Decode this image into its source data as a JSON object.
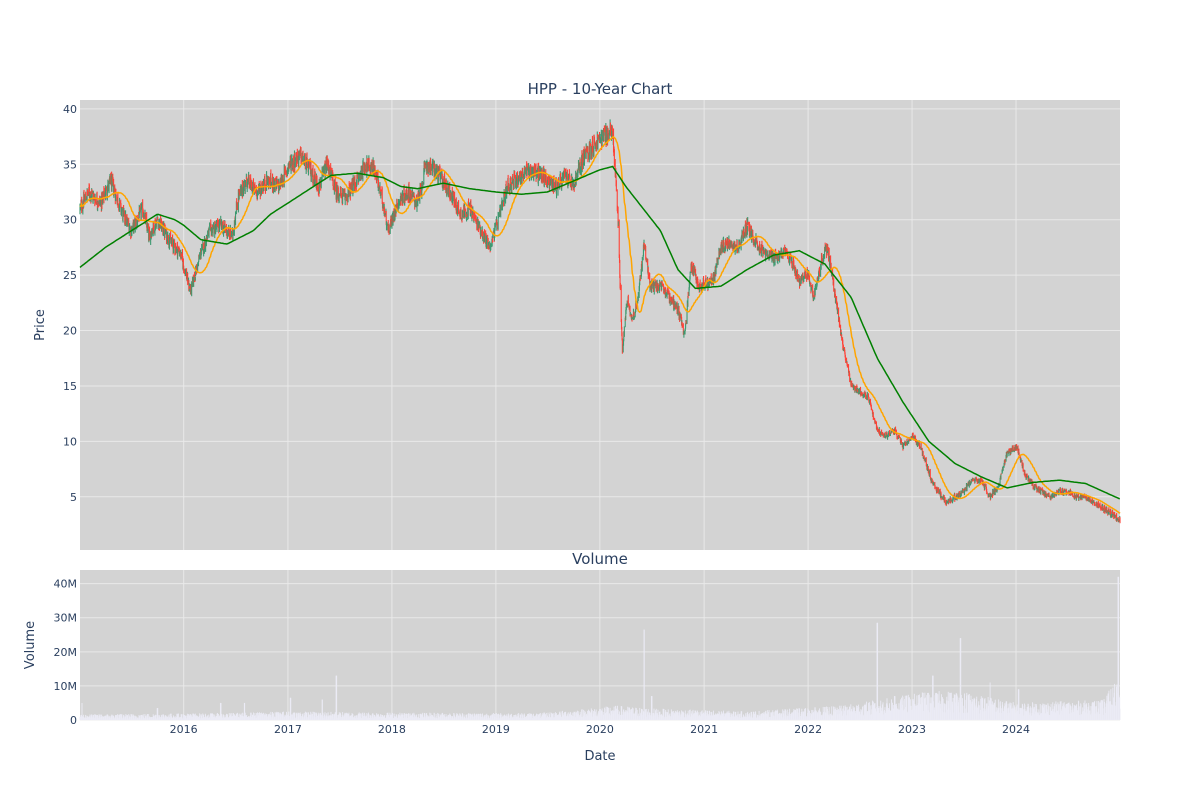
{
  "chart_data": [
    {
      "type": "candlestick",
      "title": "HPP - 10-Year Chart",
      "ylabel": "Price",
      "xlabel": "",
      "ylim": [
        0.2,
        40.8
      ],
      "xlim": [
        "2015-01-02",
        "2024-12-31"
      ],
      "grid": true,
      "yticks": [
        5,
        10,
        15,
        20,
        25,
        30,
        35,
        40
      ],
      "xtick_years": [
        2016,
        2017,
        2018,
        2019,
        2020,
        2021,
        2022,
        2023,
        2024
      ],
      "colors": {
        "up": "#3d9970",
        "down": "#ff4136",
        "ma_short": "#ffa500",
        "ma_long": "#008000",
        "plot_bg": "#d3d3d3"
      },
      "close_anchors": [
        [
          "2015-01-02",
          31.0
        ],
        [
          "2015-02-01",
          32.5
        ],
        [
          "2015-03-15",
          31.5
        ],
        [
          "2015-04-20",
          33.5
        ],
        [
          "2015-06-01",
          30.5
        ],
        [
          "2015-07-01",
          29.0
        ],
        [
          "2015-08-10",
          31.0
        ],
        [
          "2015-09-01",
          28.5
        ],
        [
          "2015-10-01",
          30.0
        ],
        [
          "2015-11-15",
          28.0
        ],
        [
          "2015-12-20",
          27.0
        ],
        [
          "2016-01-25",
          23.5
        ],
        [
          "2016-03-01",
          27.0
        ],
        [
          "2016-04-01",
          29.0
        ],
        [
          "2016-05-10",
          29.5
        ],
        [
          "2016-06-20",
          28.5
        ],
        [
          "2016-07-10",
          32.0
        ],
        [
          "2016-08-10",
          33.5
        ],
        [
          "2016-09-15",
          32.5
        ],
        [
          "2016-10-20",
          33.5
        ],
        [
          "2016-12-01",
          33.0
        ],
        [
          "2017-01-05",
          35.0
        ],
        [
          "2017-02-15",
          35.8
        ],
        [
          "2017-03-20",
          34.5
        ],
        [
          "2017-04-20",
          33.0
        ],
        [
          "2017-05-20",
          35.0
        ],
        [
          "2017-06-20",
          32.5
        ],
        [
          "2017-07-20",
          32.0
        ],
        [
          "2017-09-01",
          33.5
        ],
        [
          "2017-10-01",
          35.0
        ],
        [
          "2017-11-01",
          34.5
        ],
        [
          "2017-12-01",
          31.5
        ],
        [
          "2017-12-20",
          29.0
        ],
        [
          "2018-01-20",
          31.5
        ],
        [
          "2018-03-01",
          32.5
        ],
        [
          "2018-04-01",
          31.5
        ],
        [
          "2018-05-01",
          35.0
        ],
        [
          "2018-06-01",
          34.5
        ],
        [
          "2018-07-01",
          33.5
        ],
        [
          "2018-08-01",
          32.0
        ],
        [
          "2018-09-01",
          30.5
        ],
        [
          "2018-10-01",
          31.0
        ],
        [
          "2018-11-10",
          29.0
        ],
        [
          "2018-12-10",
          27.5
        ],
        [
          "2019-01-10",
          30.0
        ],
        [
          "2019-02-10",
          33.0
        ],
        [
          "2019-04-01",
          34.0
        ],
        [
          "2019-05-01",
          34.5
        ],
        [
          "2019-06-10",
          34.0
        ],
        [
          "2019-08-01",
          33.0
        ],
        [
          "2019-09-01",
          34.0
        ],
        [
          "2019-10-01",
          33.0
        ],
        [
          "2019-11-01",
          35.5
        ],
        [
          "2019-12-01",
          36.5
        ],
        [
          "2020-01-10",
          37.5
        ],
        [
          "2020-02-15",
          38.0
        ],
        [
          "2020-03-05",
          30.0
        ],
        [
          "2020-03-20",
          18.0
        ],
        [
          "2020-04-05",
          23.0
        ],
        [
          "2020-04-25",
          21.0
        ],
        [
          "2020-05-15",
          23.0
        ],
        [
          "2020-06-05",
          28.0
        ],
        [
          "2020-06-25",
          24.0
        ],
        [
          "2020-08-01",
          24.0
        ],
        [
          "2020-09-01",
          23.0
        ],
        [
          "2020-10-01",
          22.0
        ],
        [
          "2020-10-25",
          19.5
        ],
        [
          "2020-11-15",
          26.0
        ],
        [
          "2020-12-15",
          24.0
        ],
        [
          "2021-02-01",
          24.5
        ],
        [
          "2021-03-01",
          27.5
        ],
        [
          "2021-04-01",
          28.0
        ],
        [
          "2021-05-01",
          27.5
        ],
        [
          "2021-06-01",
          29.5
        ],
        [
          "2021-07-01",
          28.0
        ],
        [
          "2021-08-01",
          27.0
        ],
        [
          "2021-09-01",
          26.5
        ],
        [
          "2021-10-01",
          27.0
        ],
        [
          "2021-11-01",
          26.5
        ],
        [
          "2021-12-01",
          24.5
        ],
        [
          "2022-01-01",
          25.0
        ],
        [
          "2022-01-20",
          23.0
        ],
        [
          "2022-02-20",
          26.5
        ],
        [
          "2022-03-10",
          27.5
        ],
        [
          "2022-04-01",
          24.0
        ],
        [
          "2022-05-01",
          19.0
        ],
        [
          "2022-06-01",
          15.0
        ],
        [
          "2022-07-01",
          14.5
        ],
        [
          "2022-08-01",
          14.0
        ],
        [
          "2022-09-01",
          11.0
        ],
        [
          "2022-10-01",
          10.5
        ],
        [
          "2022-11-01",
          11.0
        ],
        [
          "2022-12-01",
          9.5
        ],
        [
          "2023-01-01",
          10.5
        ],
        [
          "2023-02-01",
          9.5
        ],
        [
          "2023-03-10",
          6.5
        ],
        [
          "2023-04-01",
          5.5
        ],
        [
          "2023-05-01",
          4.5
        ],
        [
          "2023-06-01",
          5.0
        ],
        [
          "2023-07-01",
          5.5
        ],
        [
          "2023-08-01",
          6.5
        ],
        [
          "2023-09-01",
          6.5
        ],
        [
          "2023-10-01",
          5.0
        ],
        [
          "2023-11-01",
          6.0
        ],
        [
          "2023-12-01",
          9.0
        ],
        [
          "2024-01-05",
          9.5
        ],
        [
          "2024-02-01",
          7.0
        ],
        [
          "2024-03-01",
          6.0
        ],
        [
          "2024-04-01",
          5.5
        ],
        [
          "2024-05-01",
          5.0
        ],
        [
          "2024-06-01",
          5.5
        ],
        [
          "2024-07-01",
          5.5
        ],
        [
          "2024-08-01",
          5.0
        ],
        [
          "2024-09-01",
          5.0
        ],
        [
          "2024-10-01",
          4.5
        ],
        [
          "2024-11-01",
          4.0
        ],
        [
          "2024-12-01",
          3.5
        ],
        [
          "2024-12-31",
          2.8
        ]
      ],
      "ma_long_anchors": [
        [
          "2015-01-02",
          25.7
        ],
        [
          "2015-04-01",
          27.5
        ],
        [
          "2015-07-01",
          29.0
        ],
        [
          "2015-10-01",
          30.5
        ],
        [
          "2015-12-01",
          30.0
        ],
        [
          "2016-01-01",
          29.5
        ],
        [
          "2016-03-01",
          28.2
        ],
        [
          "2016-06-01",
          27.8
        ],
        [
          "2016-09-01",
          29.0
        ],
        [
          "2016-11-01",
          30.5
        ],
        [
          "2017-01-01",
          31.5
        ],
        [
          "2017-04-01",
          33.0
        ],
        [
          "2017-06-01",
          34.0
        ],
        [
          "2017-09-01",
          34.2
        ],
        [
          "2017-12-01",
          33.8
        ],
        [
          "2018-02-01",
          33.0
        ],
        [
          "2018-04-01",
          32.8
        ],
        [
          "2018-07-01",
          33.3
        ],
        [
          "2018-10-01",
          32.8
        ],
        [
          "2019-01-01",
          32.5
        ],
        [
          "2019-04-01",
          32.3
        ],
        [
          "2019-07-01",
          32.5
        ],
        [
          "2019-10-01",
          33.5
        ],
        [
          "2020-01-01",
          34.5
        ],
        [
          "2020-02-15",
          34.8
        ],
        [
          "2020-04-01",
          33.0
        ],
        [
          "2020-06-01",
          31.0
        ],
        [
          "2020-08-01",
          29.0
        ],
        [
          "2020-10-01",
          25.5
        ],
        [
          "2020-12-01",
          23.8
        ],
        [
          "2021-03-01",
          24.0
        ],
        [
          "2021-06-01",
          25.5
        ],
        [
          "2021-09-01",
          26.8
        ],
        [
          "2021-12-01",
          27.2
        ],
        [
          "2022-03-01",
          26.0
        ],
        [
          "2022-06-01",
          23.0
        ],
        [
          "2022-09-01",
          17.5
        ],
        [
          "2022-12-01",
          13.5
        ],
        [
          "2023-03-01",
          10.0
        ],
        [
          "2023-06-01",
          8.0
        ],
        [
          "2023-09-01",
          6.8
        ],
        [
          "2023-12-01",
          5.8
        ],
        [
          "2024-03-01",
          6.3
        ],
        [
          "2024-06-01",
          6.5
        ],
        [
          "2024-09-01",
          6.2
        ],
        [
          "2024-12-31",
          4.8
        ]
      ]
    },
    {
      "type": "bar",
      "title": "Volume",
      "ylabel": "Volume",
      "xlabel": "Date",
      "ylim": [
        0,
        44000000
      ],
      "yticks": [
        0,
        10000000,
        20000000,
        30000000,
        40000000
      ],
      "ytick_labels": [
        "0",
        "10M",
        "20M",
        "30M",
        "40M"
      ],
      "xtick_years": [
        2016,
        2017,
        2018,
        2019,
        2020,
        2021,
        2022,
        2023,
        2024
      ],
      "color": "#ebebf5",
      "level_anchors": [
        [
          "2015-01-02",
          1000000
        ],
        [
          "2016-06-01",
          1200000
        ],
        [
          "2017-01-01",
          1500000
        ],
        [
          "2018-01-01",
          1300000
        ],
        [
          "2019-06-01",
          1200000
        ],
        [
          "2020-03-01",
          2500000
        ],
        [
          "2020-07-01",
          2000000
        ],
        [
          "2021-06-01",
          1500000
        ],
        [
          "2022-05-01",
          2500000
        ],
        [
          "2022-09-01",
          3500000
        ],
        [
          "2023-03-01",
          5000000
        ],
        [
          "2023-07-01",
          5000000
        ],
        [
          "2024-01-01",
          3000000
        ],
        [
          "2024-11-01",
          3500000
        ],
        [
          "2024-12-31",
          8000000
        ]
      ],
      "spikes": [
        [
          "2015-01-10",
          5000000
        ],
        [
          "2015-10-01",
          3500000
        ],
        [
          "2016-05-10",
          5000000
        ],
        [
          "2016-08-01",
          5000000
        ],
        [
          "2017-01-10",
          6500000
        ],
        [
          "2017-05-01",
          6000000
        ],
        [
          "2017-06-20",
          13000000
        ],
        [
          "2020-06-05",
          26500000
        ],
        [
          "2020-07-01",
          7000000
        ],
        [
          "2022-09-01",
          28500000
        ],
        [
          "2022-11-01",
          7000000
        ],
        [
          "2023-03-15",
          13000000
        ],
        [
          "2023-06-20",
          24000000
        ],
        [
          "2023-10-01",
          11000000
        ],
        [
          "2024-01-10",
          9000000
        ],
        [
          "2024-12-25",
          42000000
        ]
      ]
    }
  ]
}
